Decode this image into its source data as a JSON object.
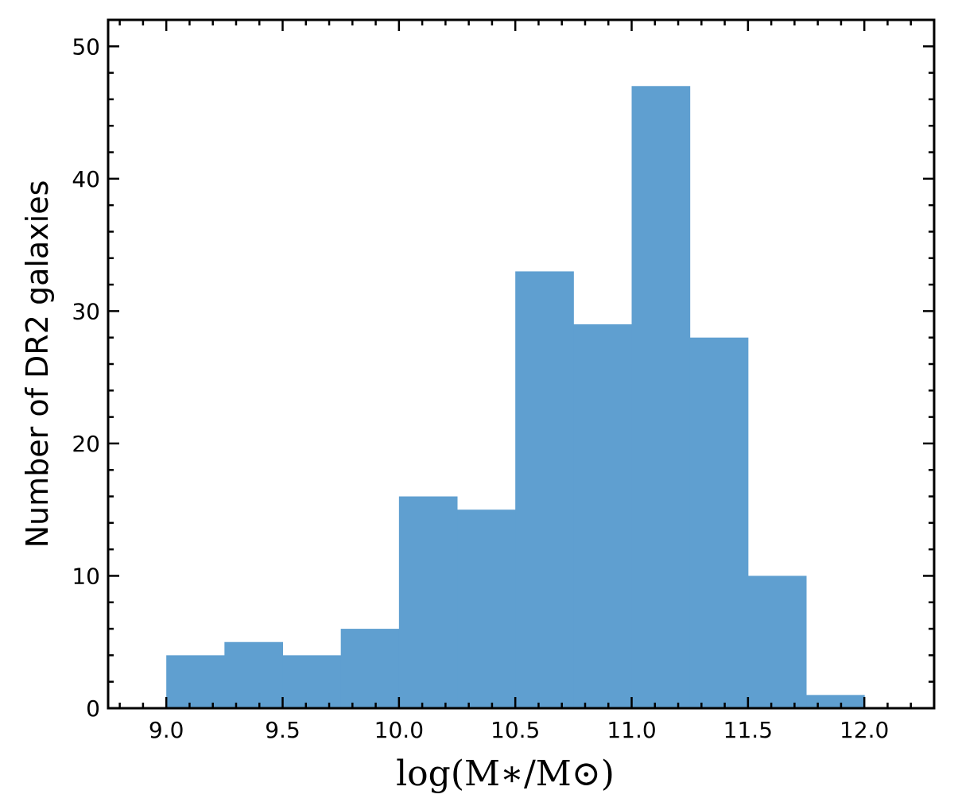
{
  "chart_data": {
    "type": "bar",
    "bin_edges": [
      9.0,
      9.25,
      9.5,
      9.75,
      10.0,
      10.25,
      10.5,
      10.75,
      11.0,
      11.25,
      11.5,
      11.75,
      12.0
    ],
    "values": [
      4,
      5,
      4,
      6,
      16,
      15,
      33,
      29,
      47,
      28,
      10,
      1
    ],
    "xlabel": "log(M∗/M⊙)",
    "ylabel": "Number of DR2 galaxies",
    "xlim": [
      8.75,
      12.3
    ],
    "ylim": [
      0,
      52
    ],
    "x_ticks": [
      "9.0",
      "9.5",
      "10.0",
      "10.5",
      "11.0",
      "11.5",
      "12.0"
    ],
    "y_ticks": [
      "0",
      "10",
      "20",
      "30",
      "40",
      "50"
    ],
    "bar_color": "#5f9fd0",
    "grid": false,
    "legend": "none"
  }
}
